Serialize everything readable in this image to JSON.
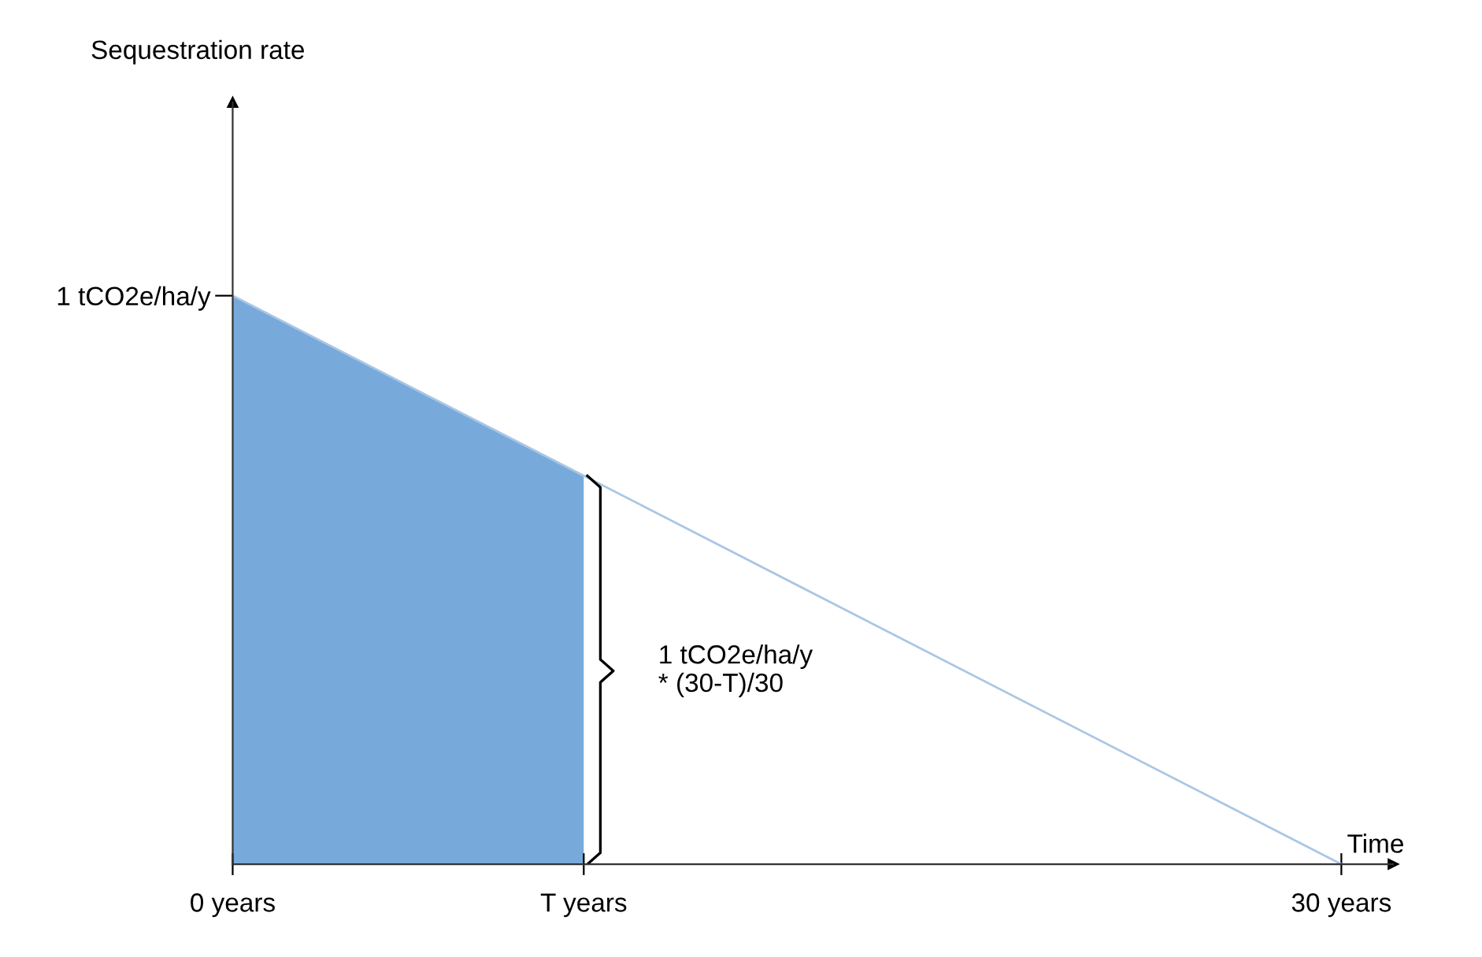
{
  "chart_data": {
    "type": "line",
    "ylabel": "Sequestration rate",
    "xlabel": "Time",
    "xlim": [
      0,
      31.4
    ],
    "ylim": [
      0,
      1.34
    ],
    "xticks": [
      {
        "value": 0,
        "label": "0 years"
      },
      {
        "value": 9.5,
        "label": "T years"
      },
      {
        "value": 30,
        "label": "30 years"
      }
    ],
    "yticks": [
      {
        "value": 1,
        "label": "1 tCO2e/ha/y"
      }
    ],
    "series": [
      {
        "type": "area",
        "color": "#77aadb",
        "x": [
          0,
          9.5
        ],
        "values": [
          1,
          0.683
        ]
      },
      {
        "color": "#a9c6e4",
        "x": [
          0,
          30
        ],
        "values": [
          1,
          0
        ]
      }
    ],
    "annotations": [
      {
        "text": "1 tCO2e/ha/y\n* (30-T)/30",
        "x": 9.5,
        "y": 0.34
      }
    ],
    "grid": false,
    "legend": false,
    "marker": "none",
    "line_style": "solid"
  }
}
